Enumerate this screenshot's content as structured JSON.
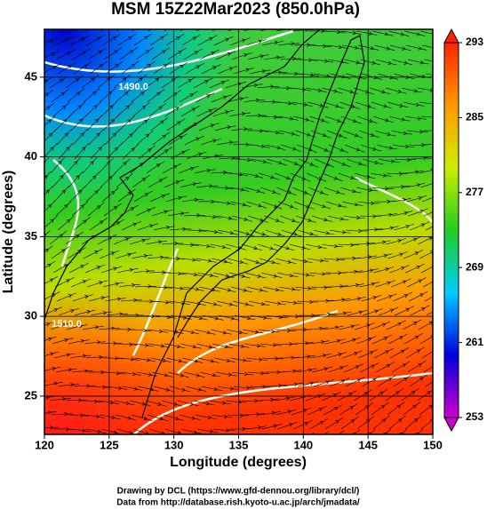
{
  "chart_data": {
    "type": "map",
    "title": "MSM 15Z22Mar2023 (850.0hPa)",
    "x_label": "Longitude (degrees)",
    "y_label": "Latitude  (degrees)",
    "xlim": [
      120,
      150
    ],
    "xticks": [
      120,
      125,
      130,
      135,
      140,
      145,
      150
    ],
    "ylim": [
      22.6,
      48
    ],
    "yticks": [
      25,
      30,
      35,
      40,
      45
    ],
    "grid": true,
    "colorbar": {
      "lim": [
        253,
        293
      ],
      "ticks": [
        253,
        261,
        269,
        277,
        285,
        293
      ],
      "colors": [
        "#cc00cc",
        "#0000dd",
        "#00ccff",
        "#22cc22",
        "#ccee00",
        "#ff9900",
        "#ff2200"
      ]
    },
    "contour_labels": [
      "1490.0",
      "1510.0"
    ],
    "footer": [
      "Drawing by DCL (https://www.gfd-dennou.org/library/dcl/)",
      "Data from http://database.rish.kyoto-u.ac.jp/arch/jmadata/"
    ]
  }
}
